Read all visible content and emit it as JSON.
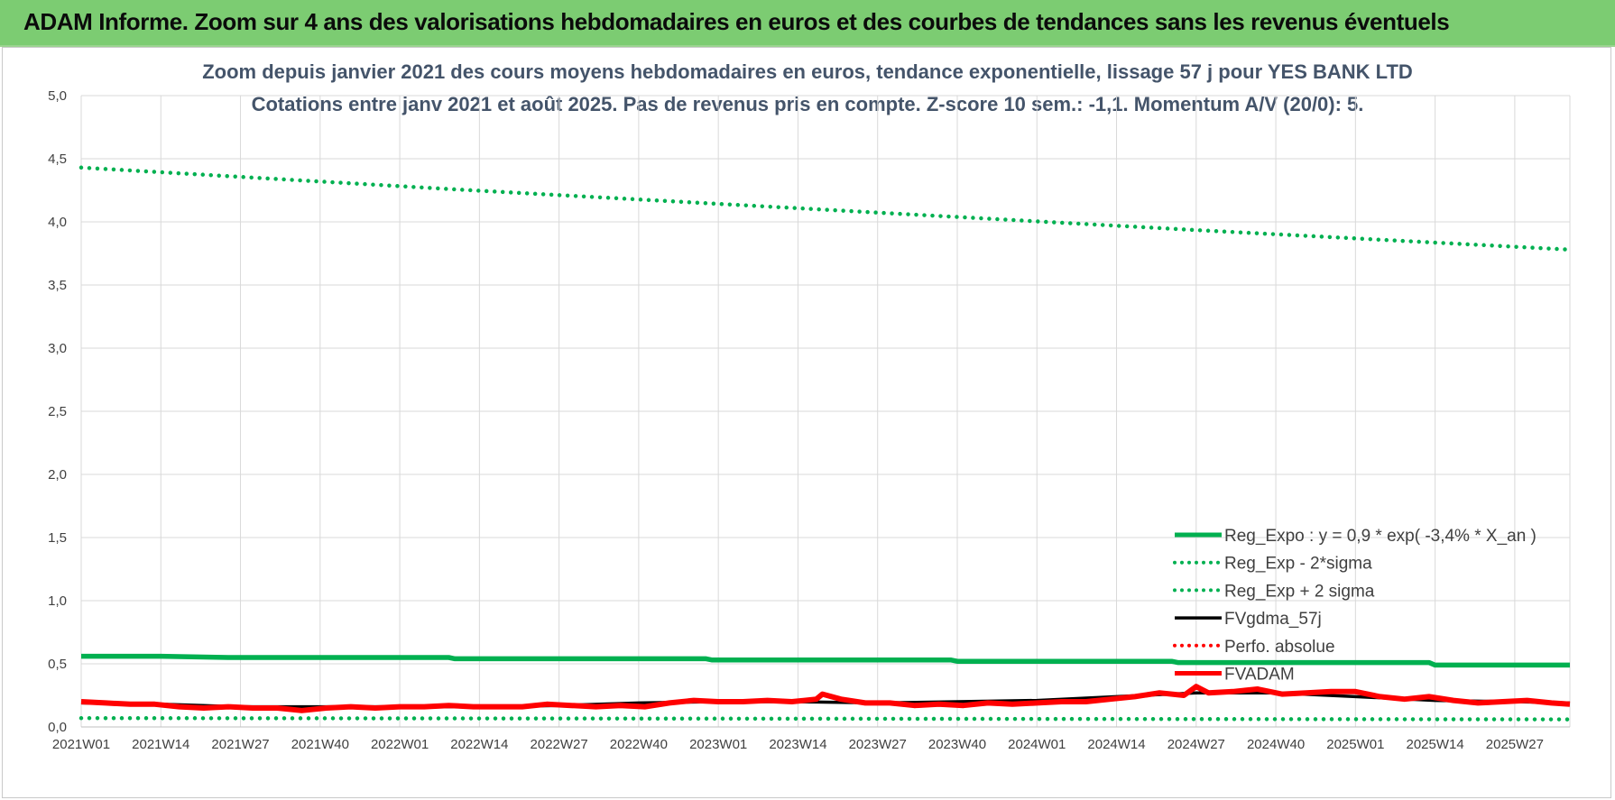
{
  "banner": {
    "title": "ADAM Informe. Zoom sur 4 ans des valorisations hebdomadaires en euros et des courbes de tendances sans les revenus éventuels"
  },
  "chart_data": {
    "type": "line",
    "title": "Zoom depuis janvier 2021 des cours moyens hebdomadaires en euros, tendance exponentielle, lissage 57 j pour YES BANK LTD",
    "subtitle": "Cotations entre janv 2021 et août 2025.  Pas de revenus pris en compte. Z-score 10 sem.: -1,1. Momentum A/V (20/0): 5.",
    "xlabel": "",
    "ylabel": "",
    "ylim": [
      0,
      5
    ],
    "y_ticks": [
      "0,0",
      "0,5",
      "1,0",
      "1,5",
      "2,0",
      "2,5",
      "3,0",
      "3,5",
      "4,0",
      "4,5",
      "5,0"
    ],
    "x_ticks": [
      "2021W01",
      "2021W14",
      "2021W27",
      "2021W40",
      "2022W01",
      "2022W14",
      "2022W27",
      "2022W40",
      "2023W01",
      "2023W14",
      "2023W27",
      "2023W40",
      "2024W01",
      "2024W14",
      "2024W27",
      "2024W40",
      "2025W01",
      "2025W14",
      "2025W27"
    ],
    "x_range_weeks": [
      0,
      243
    ],
    "grid": "horizontal and vertical",
    "legend_position": "right, inside plot",
    "series": [
      {
        "name": "Reg_Expo : y = 0,9 * exp( -3,4% *  X_an )",
        "color": "#00b050",
        "style": "solid-thick",
        "points": [
          [
            0,
            0.56
          ],
          [
            13,
            0.56
          ],
          [
            24,
            0.55
          ],
          [
            60,
            0.55
          ],
          [
            61,
            0.54
          ],
          [
            102,
            0.54
          ],
          [
            103,
            0.53
          ],
          [
            142,
            0.53
          ],
          [
            143,
            0.52
          ],
          [
            178,
            0.52
          ],
          [
            179,
            0.51
          ],
          [
            220,
            0.51
          ],
          [
            221,
            0.49
          ],
          [
            243,
            0.49
          ]
        ]
      },
      {
        "name": "Reg_Exp - 2*sigma",
        "color": "#00b050",
        "style": "dotted",
        "points": [
          [
            0,
            0.07
          ],
          [
            243,
            0.06
          ]
        ]
      },
      {
        "name": "Reg_Exp + 2 sigma",
        "color": "#00b050",
        "style": "dotted",
        "points": [
          [
            0,
            4.43
          ],
          [
            60,
            4.26
          ],
          [
            120,
            4.1
          ],
          [
            180,
            3.94
          ],
          [
            243,
            3.78
          ]
        ]
      },
      {
        "name": "FVgdma_57j",
        "color": "#000000",
        "style": "solid",
        "points": [
          [
            0,
            0.19
          ],
          [
            13,
            0.18
          ],
          [
            26,
            0.16
          ],
          [
            39,
            0.16
          ],
          [
            52,
            0.16
          ],
          [
            65,
            0.16
          ],
          [
            78,
            0.17
          ],
          [
            91,
            0.19
          ],
          [
            104,
            0.2
          ],
          [
            117,
            0.2
          ],
          [
            130,
            0.19
          ],
          [
            143,
            0.2
          ],
          [
            156,
            0.21
          ],
          [
            169,
            0.24
          ],
          [
            182,
            0.27
          ],
          [
            195,
            0.27
          ],
          [
            208,
            0.24
          ],
          [
            221,
            0.21
          ],
          [
            234,
            0.2
          ],
          [
            243,
            0.19
          ]
        ]
      },
      {
        "name": "Perfo. absolue",
        "color": "#ff0000",
        "style": "dotted",
        "points": []
      },
      {
        "name": "FVADAM",
        "color": "#ff0000",
        "style": "solid-thick",
        "points": [
          [
            0,
            0.2
          ],
          [
            4,
            0.19
          ],
          [
            8,
            0.18
          ],
          [
            12,
            0.18
          ],
          [
            16,
            0.16
          ],
          [
            20,
            0.15
          ],
          [
            24,
            0.16
          ],
          [
            28,
            0.15
          ],
          [
            32,
            0.15
          ],
          [
            36,
            0.13
          ],
          [
            40,
            0.15
          ],
          [
            44,
            0.16
          ],
          [
            48,
            0.15
          ],
          [
            52,
            0.16
          ],
          [
            56,
            0.16
          ],
          [
            60,
            0.17
          ],
          [
            64,
            0.16
          ],
          [
            68,
            0.16
          ],
          [
            72,
            0.16
          ],
          [
            76,
            0.18
          ],
          [
            80,
            0.17
          ],
          [
            84,
            0.16
          ],
          [
            88,
            0.17
          ],
          [
            92,
            0.16
          ],
          [
            96,
            0.19
          ],
          [
            100,
            0.21
          ],
          [
            104,
            0.2
          ],
          [
            108,
            0.2
          ],
          [
            112,
            0.21
          ],
          [
            116,
            0.2
          ],
          [
            120,
            0.22
          ],
          [
            121,
            0.26
          ],
          [
            124,
            0.22
          ],
          [
            128,
            0.19
          ],
          [
            132,
            0.19
          ],
          [
            136,
            0.17
          ],
          [
            140,
            0.18
          ],
          [
            144,
            0.17
          ],
          [
            148,
            0.19
          ],
          [
            152,
            0.18
          ],
          [
            156,
            0.19
          ],
          [
            160,
            0.2
          ],
          [
            164,
            0.2
          ],
          [
            168,
            0.22
          ],
          [
            172,
            0.24
          ],
          [
            176,
            0.27
          ],
          [
            180,
            0.25
          ],
          [
            182,
            0.32
          ],
          [
            184,
            0.27
          ],
          [
            188,
            0.28
          ],
          [
            192,
            0.3
          ],
          [
            196,
            0.26
          ],
          [
            200,
            0.27
          ],
          [
            204,
            0.28
          ],
          [
            208,
            0.28
          ],
          [
            212,
            0.24
          ],
          [
            216,
            0.22
          ],
          [
            220,
            0.24
          ],
          [
            224,
            0.21
          ],
          [
            228,
            0.19
          ],
          [
            232,
            0.2
          ],
          [
            236,
            0.21
          ],
          [
            240,
            0.19
          ],
          [
            243,
            0.18
          ]
        ]
      }
    ]
  }
}
